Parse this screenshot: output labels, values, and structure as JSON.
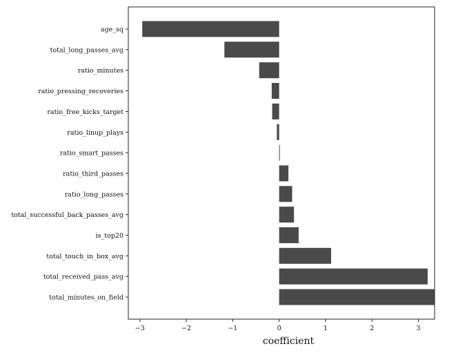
{
  "chart_data": {
    "type": "bar",
    "orientation": "horizontal",
    "categories": [
      "age_sq",
      "total_long_passes_avg",
      "ratio_minutes",
      "ratio_pressing_recoveries",
      "ratio_free_kicks_target",
      "ratio_linup_plays",
      "ratio_smart_passes",
      "ratio_third_passes",
      "ratio_long_passes",
      "total_successful_back_passes_avg",
      "is_top20",
      "total_touch_in_box_avg",
      "total_received_pass_avg",
      "total_minutes_on_field"
    ],
    "values": [
      -2.95,
      -1.18,
      -0.43,
      -0.16,
      -0.15,
      -0.05,
      0.01,
      0.2,
      0.28,
      0.32,
      0.42,
      1.12,
      3.2,
      3.35
    ],
    "xlabel": "coefficient",
    "ylabel": "",
    "title": "",
    "xlim": [
      -3.25,
      3.35
    ],
    "xticks": [
      -3,
      -2,
      -1,
      0,
      1,
      2,
      3
    ],
    "xtick_labels": [
      "−3",
      "−2",
      "−1",
      "0",
      "1",
      "2",
      "3"
    ],
    "bar_color": "#4a4a4a",
    "grid": false
  }
}
